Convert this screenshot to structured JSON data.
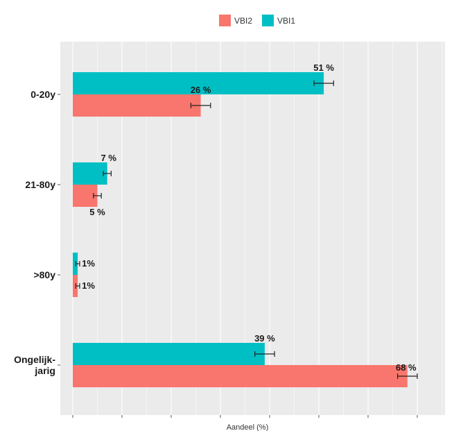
{
  "chart_data": {
    "type": "bar",
    "orientation": "horizontal",
    "categories": [
      "0-20y",
      "21-80y",
      ">80y",
      "Ongelijk-\njarig"
    ],
    "series": [
      {
        "name": "VBI1",
        "color": "#00BFC4",
        "values": [
          51,
          7,
          1,
          39
        ],
        "labels": [
          "51 %",
          "7 %",
          "1%",
          "39 %"
        ],
        "error": [
          2,
          0.8,
          0.4,
          2
        ]
      },
      {
        "name": "VBI2",
        "color": "#F8766D",
        "values": [
          26,
          5,
          1,
          68
        ],
        "labels": [
          "26 %",
          "5 %",
          "1%",
          "68 %"
        ],
        "error": [
          2,
          0.8,
          0.4,
          2
        ]
      }
    ],
    "legend_order": [
      "VBI2",
      "VBI1"
    ],
    "legend_position": "top",
    "xlabel": "Aandeel (%)",
    "ylabel": "",
    "xlim": [
      0,
      75
    ],
    "grid": true,
    "panel_color": "#EBEBEB"
  }
}
